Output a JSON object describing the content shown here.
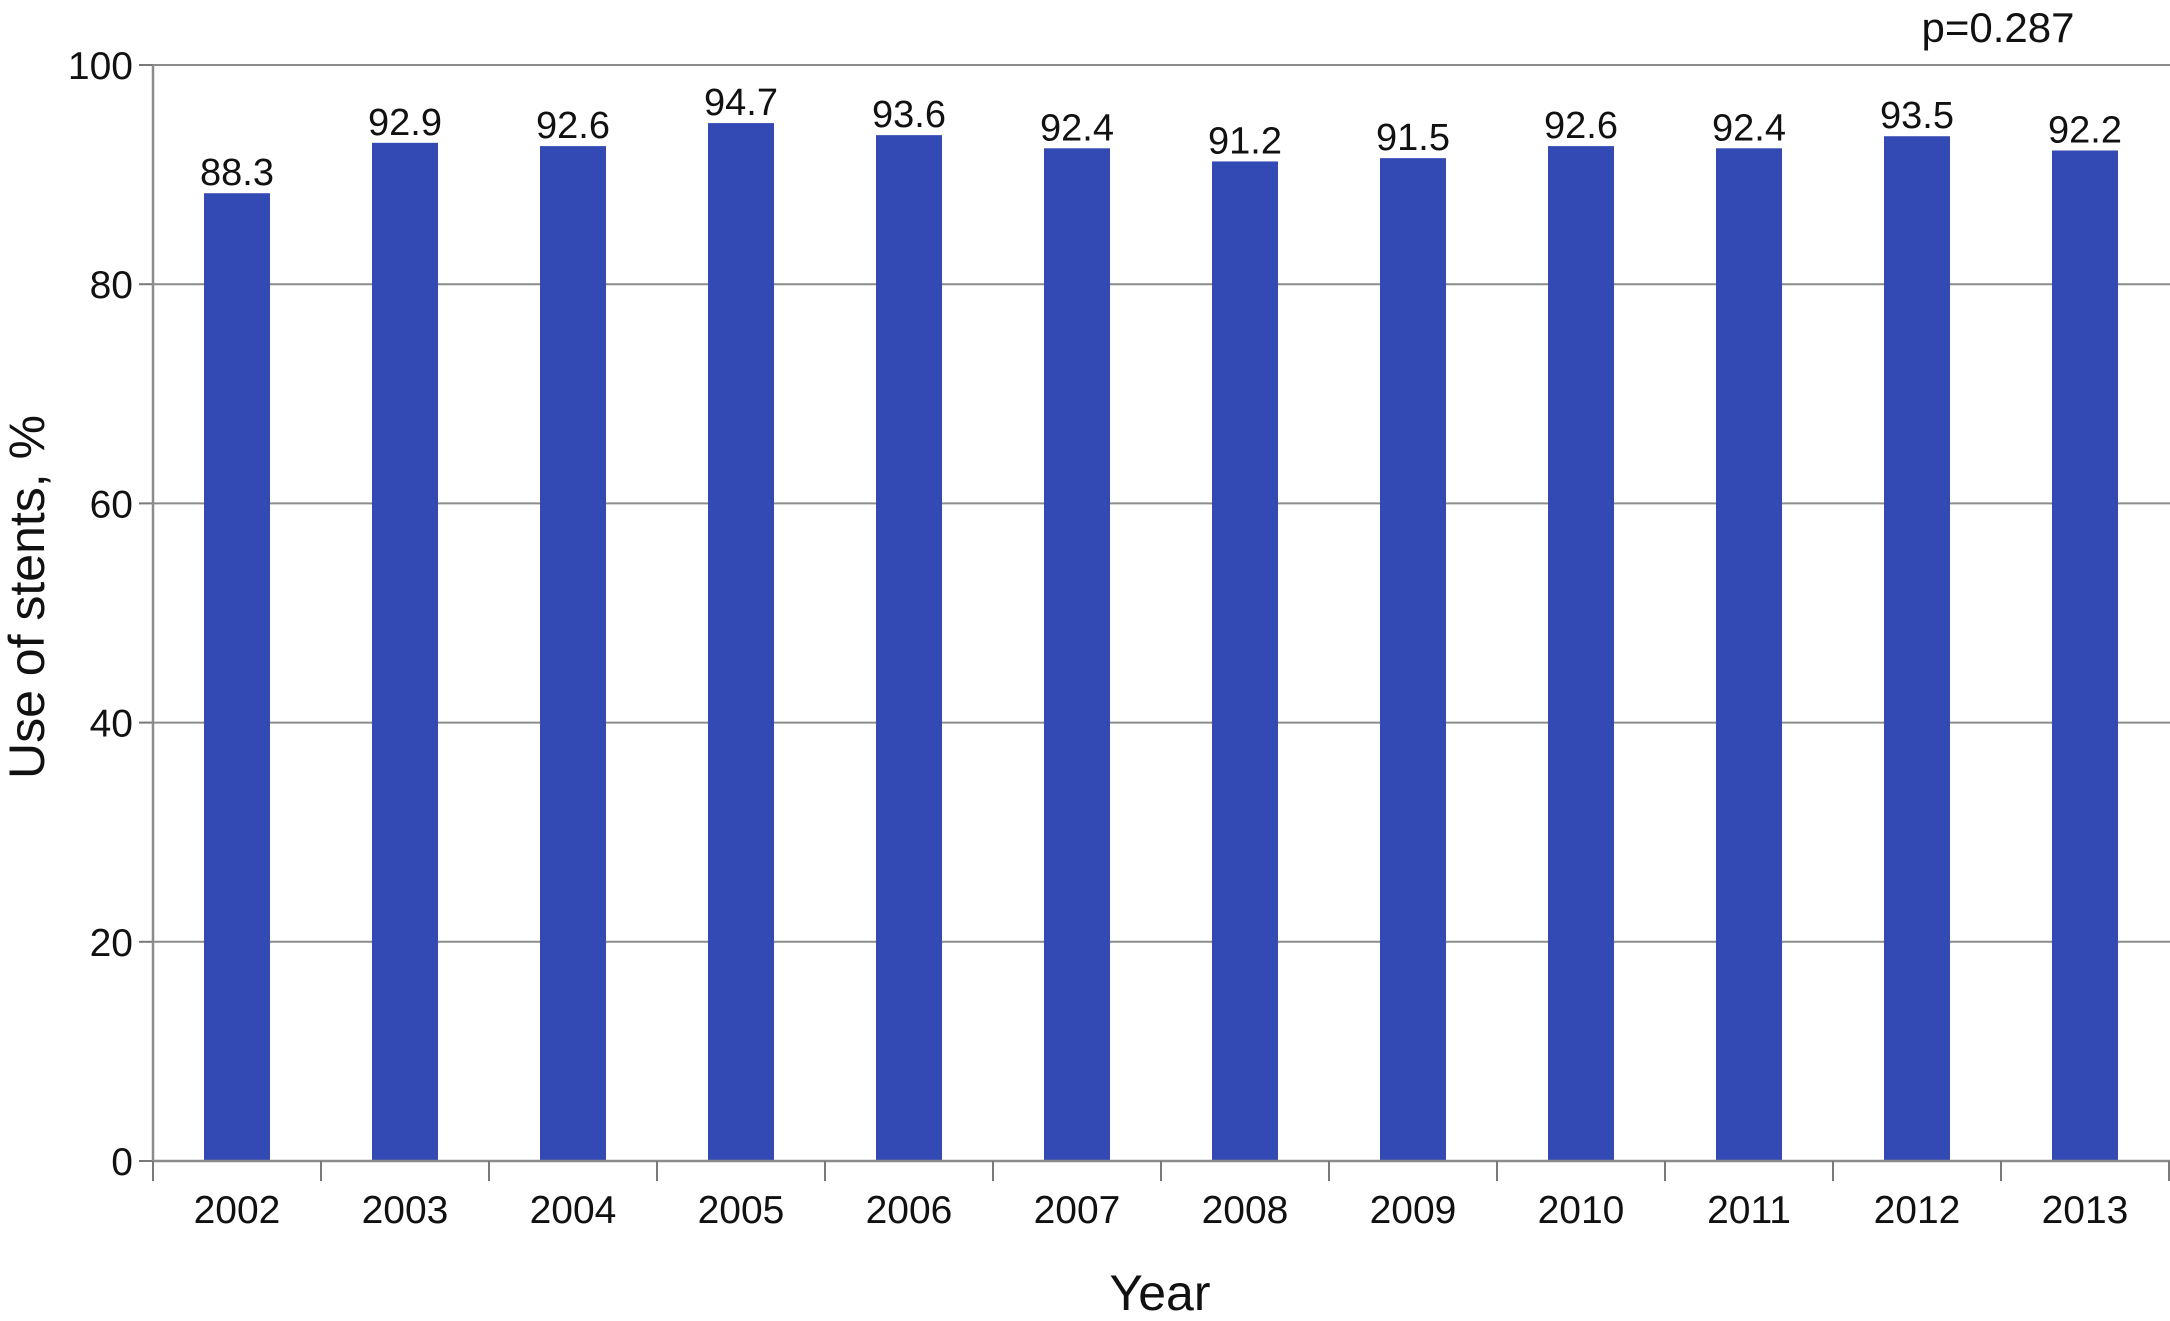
{
  "chart_data": {
    "type": "bar",
    "categories": [
      "2002",
      "2003",
      "2004",
      "2005",
      "2006",
      "2007",
      "2008",
      "2009",
      "2010",
      "2011",
      "2012",
      "2013"
    ],
    "series": [
      {
        "values": [
          88.3,
          92.9,
          92.6,
          94.7,
          93.6,
          92.4,
          91.2,
          91.5,
          92.6,
          92.4,
          93.5,
          92.2
        ]
      }
    ],
    "data_labels": [
      "88.3",
      "92.9",
      "92.6",
      "94.7",
      "93.6",
      "92.4",
      "91.2",
      "91.5",
      "92.6",
      "92.4",
      "93.5",
      "92.2"
    ],
    "xlabel": "Year",
    "ylabel": "Use of stents, %",
    "ylim": [
      0,
      100
    ],
    "yticks": [
      "0",
      "20",
      "40",
      "60",
      "80",
      "100"
    ],
    "annotation": "p=0.287",
    "grid": true,
    "bar_color": "#3349b3"
  }
}
